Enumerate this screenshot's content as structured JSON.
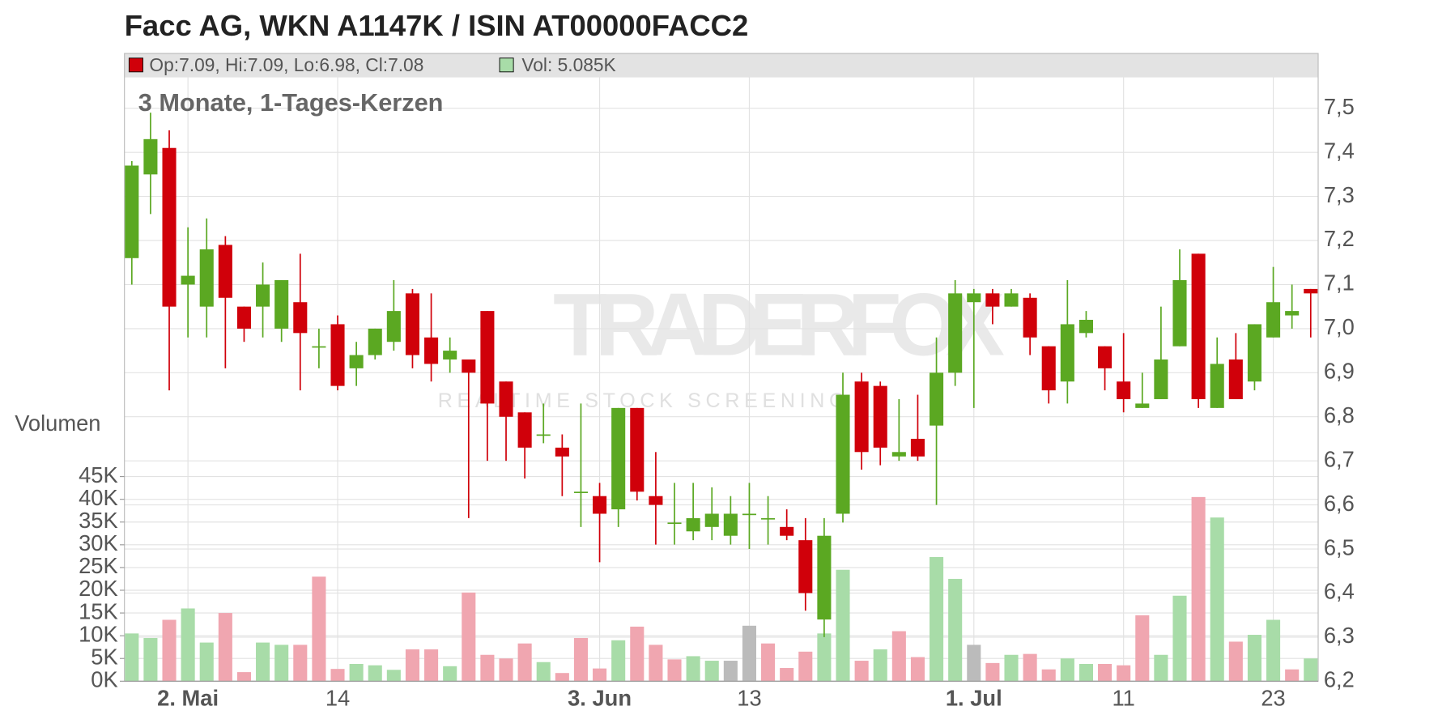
{
  "chart_data": {
    "type": "candlestick",
    "title": "Facc AG, WKN A1147K / ISIN AT00000FACC2",
    "subtitle": "3 Monate, 1-Tages-Kerzen",
    "legend": {
      "ohlc": "Op:7.09, Hi:7.09, Lo:6.98, Cl:7.08",
      "ohlc_color": "#d0000a",
      "volume": "Vol: 5.085K",
      "volume_color": "#a8dca8"
    },
    "volume_axis_label": "Volumen",
    "watermark": "TRADERFOX",
    "watermark_tagline": "REALTIME STOCK SCREENING",
    "up_color": "#5ba822",
    "down_color": "#d0000a",
    "grid": true,
    "categories": [
      null,
      null,
      null,
      "2. Mai",
      null,
      null,
      null,
      null,
      null,
      null,
      null,
      "14",
      null,
      null,
      null,
      null,
      null,
      null,
      null,
      null,
      null,
      null,
      null,
      null,
      null,
      "3. Jun",
      null,
      null,
      null,
      null,
      null,
      null,
      null,
      "13",
      null,
      null,
      null,
      null,
      null,
      null,
      null,
      null,
      null,
      null,
      null,
      "1. Jul",
      null,
      null,
      null,
      null,
      null,
      null,
      null,
      "11",
      null,
      null,
      null,
      null,
      null,
      null,
      null,
      "23",
      null,
      null
    ],
    "open": [
      7.16,
      7.35,
      7.41,
      7.1,
      7.05,
      7.19,
      7.05,
      7.05,
      7.0,
      7.06,
      6.96,
      7.01,
      6.91,
      6.94,
      6.97,
      7.08,
      6.98,
      6.93,
      6.93,
      7.04,
      6.88,
      6.81,
      6.76,
      6.73,
      6.63,
      6.62,
      6.59,
      6.82,
      6.62,
      6.56,
      6.54,
      6.55,
      6.53,
      6.58,
      6.57,
      6.55,
      6.52,
      6.34,
      6.58,
      6.88,
      6.87,
      6.71,
      6.75,
      6.78,
      6.9,
      7.06,
      7.08,
      7.05,
      7.07,
      6.96,
      6.88,
      6.99,
      6.96,
      6.88,
      6.82,
      6.84,
      6.96,
      7.17,
      6.82,
      6.93,
      6.88,
      6.98,
      7.03,
      7.09
    ],
    "high": [
      7.38,
      7.49,
      7.45,
      7.23,
      7.25,
      7.21,
      7.05,
      7.15,
      7.11,
      7.17,
      7.0,
      7.03,
      6.97,
      7.0,
      7.11,
      7.09,
      7.08,
      6.98,
      6.93,
      7.04,
      6.88,
      6.81,
      6.83,
      6.76,
      6.83,
      6.65,
      6.82,
      6.82,
      6.72,
      6.65,
      6.65,
      6.64,
      6.62,
      6.65,
      6.62,
      6.59,
      6.57,
      6.57,
      6.9,
      6.9,
      6.88,
      6.84,
      6.85,
      6.98,
      7.11,
      7.09,
      7.09,
      7.09,
      7.08,
      6.96,
      7.11,
      7.04,
      6.96,
      6.99,
      6.9,
      7.05,
      7.18,
      7.17,
      6.98,
      6.99,
      7.01,
      7.14,
      7.1,
      7.09
    ],
    "low": [
      7.1,
      7.26,
      6.86,
      6.98,
      6.98,
      6.91,
      6.97,
      6.98,
      6.97,
      6.86,
      6.91,
      6.86,
      6.87,
      6.93,
      6.95,
      6.91,
      6.88,
      6.9,
      6.57,
      6.7,
      6.7,
      6.66,
      6.74,
      6.62,
      6.55,
      6.47,
      6.55,
      6.61,
      6.51,
      6.51,
      6.52,
      6.52,
      6.51,
      6.5,
      6.51,
      6.52,
      6.36,
      6.3,
      6.56,
      6.68,
      6.69,
      6.7,
      6.7,
      6.6,
      6.87,
      6.82,
      7.01,
      7.05,
      6.94,
      6.83,
      6.83,
      6.98,
      6.86,
      6.81,
      6.82,
      6.84,
      6.96,
      6.82,
      6.82,
      6.84,
      6.86,
      6.98,
      7.0,
      6.98
    ],
    "close": [
      7.37,
      7.43,
      7.05,
      7.12,
      7.18,
      7.07,
      7.0,
      7.1,
      7.11,
      6.99,
      6.96,
      6.87,
      6.94,
      7.0,
      7.04,
      6.94,
      6.92,
      6.95,
      6.9,
      6.83,
      6.8,
      6.73,
      6.76,
      6.71,
      6.63,
      6.58,
      6.82,
      6.63,
      6.6,
      6.56,
      6.57,
      6.58,
      6.58,
      6.58,
      6.57,
      6.53,
      6.4,
      6.53,
      6.85,
      6.72,
      6.73,
      6.72,
      6.71,
      6.9,
      7.08,
      7.08,
      7.05,
      7.08,
      6.98,
      6.86,
      7.01,
      7.02,
      6.91,
      6.84,
      6.83,
      6.93,
      7.11,
      6.84,
      6.92,
      6.84,
      7.01,
      7.06,
      7.04,
      7.08
    ],
    "volume": [
      10.5,
      9.5,
      13.5,
      16,
      8.5,
      15,
      2,
      8.5,
      8,
      8,
      23,
      2.7,
      3.8,
      3.5,
      2.5,
      7,
      7,
      3.3,
      19.5,
      5.8,
      5,
      8.3,
      4.2,
      1.8,
      9.5,
      2.8,
      9,
      12,
      8,
      4.8,
      5.5,
      4.5,
      4.5,
      12.2,
      8.3,
      2.9,
      6.5,
      10.5,
      24.5,
      4.5,
      7,
      11,
      5.3,
      27.3,
      22.5,
      8,
      4,
      5.8,
      6,
      2.6,
      5,
      3.8,
      3.8,
      3.5,
      14.5,
      5.8,
      18.8,
      40.5,
      36,
      8.7,
      10.2,
      13.5,
      2.6,
      5
    ],
    "volume_colors": [
      "#a8dca8",
      "#a8dca8",
      "#f0a6b0",
      "#a8dca8",
      "#a8dca8",
      "#f0a6b0",
      "#f0a6b0",
      "#a8dca8",
      "#a8dca8",
      "#f0a6b0",
      "#f0a6b0",
      "#f0a6b0",
      "#a8dca8",
      "#a8dca8",
      "#a8dca8",
      "#f0a6b0",
      "#f0a6b0",
      "#a8dca8",
      "#f0a6b0",
      "#f0a6b0",
      "#f0a6b0",
      "#f0a6b0",
      "#a8dca8",
      "#f0a6b0",
      "#f0a6b0",
      "#f0a6b0",
      "#a8dca8",
      "#f0a6b0",
      "#f0a6b0",
      "#f0a6b0",
      "#a8dca8",
      "#a8dca8",
      "#bbbbbb",
      "#bbbbbb",
      "#f0a6b0",
      "#f0a6b0",
      "#f0a6b0",
      "#a8dca8",
      "#a8dca8",
      "#f0a6b0",
      "#a8dca8",
      "#f0a6b0",
      "#f0a6b0",
      "#a8dca8",
      "#a8dca8",
      "#bbbbbb",
      "#f0a6b0",
      "#a8dca8",
      "#f0a6b0",
      "#f0a6b0",
      "#a8dca8",
      "#a8dca8",
      "#f0a6b0",
      "#f0a6b0",
      "#f0a6b0",
      "#a8dca8",
      "#a8dca8",
      "#f0a6b0",
      "#a8dca8",
      "#f0a6b0",
      "#a8dca8",
      "#a8dca8",
      "#f0a6b0",
      "#a8dca8"
    ],
    "ylim": [
      6.2,
      7.57
    ],
    "yticks": [
      {
        "value": 6.2,
        "label": "6,2"
      },
      {
        "value": 6.3,
        "label": "6,3"
      },
      {
        "value": 6.4,
        "label": "6,4"
      },
      {
        "value": 6.5,
        "label": "6,5"
      },
      {
        "value": 6.6,
        "label": "6,6"
      },
      {
        "value": 6.7,
        "label": "6,7"
      },
      {
        "value": 6.8,
        "label": "6,8"
      },
      {
        "value": 6.9,
        "label": "6,9"
      },
      {
        "value": 7.0,
        "label": "7,0"
      },
      {
        "value": 7.1,
        "label": "7,1"
      },
      {
        "value": 7.2,
        "label": "7,2"
      },
      {
        "value": 7.3,
        "label": "7,3"
      },
      {
        "value": 7.4,
        "label": "7,4"
      },
      {
        "value": 7.5,
        "label": "7,5"
      }
    ],
    "volume_ylim": [
      0,
      45
    ],
    "volume_ticks": [
      {
        "value": 0,
        "label": "0K"
      },
      {
        "value": 5,
        "label": "5K"
      },
      {
        "value": 10,
        "label": "10K"
      },
      {
        "value": 15,
        "label": "15K"
      },
      {
        "value": 20,
        "label": "20K"
      },
      {
        "value": 25,
        "label": "25K"
      },
      {
        "value": 30,
        "label": "30K"
      },
      {
        "value": 35,
        "label": "35K"
      },
      {
        "value": 40,
        "label": "40K"
      },
      {
        "value": 45,
        "label": "45K"
      }
    ]
  }
}
